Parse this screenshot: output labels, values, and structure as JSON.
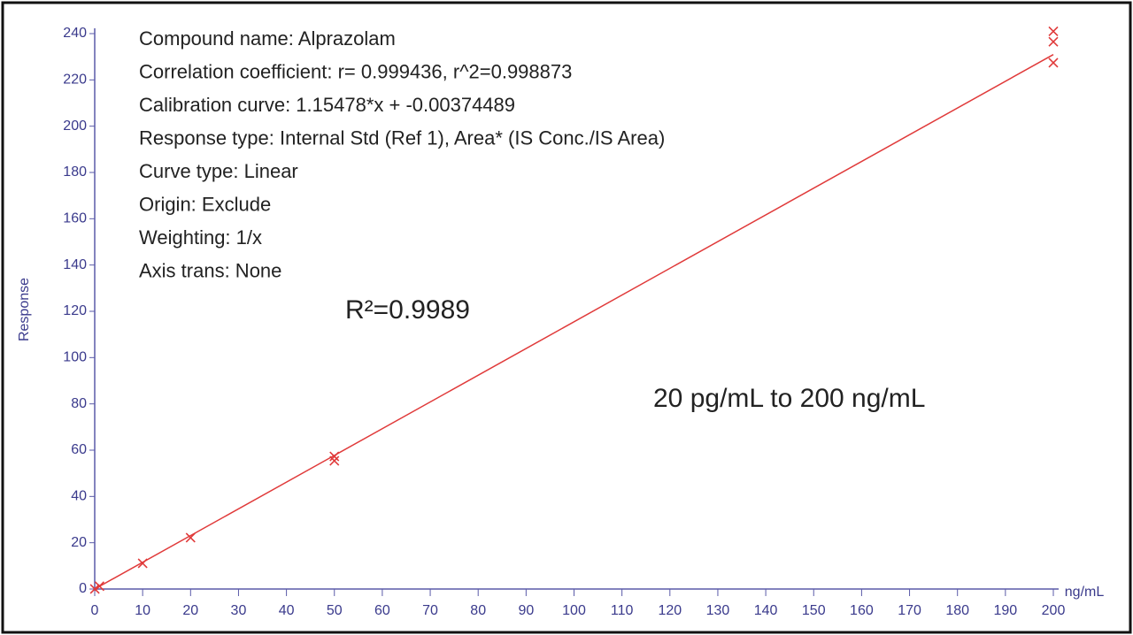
{
  "chart_data": {
    "type": "scatter",
    "xlabel": "ng/mL",
    "ylabel": "Response",
    "annotations": [
      "Compound name: Alprazolam",
      "Correlation coefficient: r= 0.999436, r^2=0.998873",
      "Calibration curve: 1.15478*x + -0.00374489",
      "Response type: Internal Std (Ref 1), Area* (IS Conc./IS Area)",
      "Curve type: Linear",
      "Origin: Exclude",
      "Weighting: 1/x",
      "Axis trans: None"
    ],
    "r2_label": "R²=0.9989",
    "range_label": "20 pg/mL to 200 ng/mL",
    "x": [
      0.02,
      1,
      10,
      20,
      50,
      50,
      200,
      200,
      200
    ],
    "values": [
      0.02,
      1.2,
      11.1,
      22.2,
      57.3,
      55.4,
      241,
      236.5,
      227.4
    ],
    "color": "#e03a3a",
    "fit_line": {
      "x": [
        0,
        200
      ],
      "values": [
        -0.0037,
        230.95
      ],
      "color": "#e03a3a"
    },
    "xlim": [
      0,
      200
    ],
    "ylim": [
      0,
      240
    ],
    "xticks": [
      0,
      10,
      20,
      30,
      40,
      50,
      60,
      70,
      80,
      90,
      100,
      110,
      120,
      130,
      140,
      150,
      160,
      170,
      180,
      190,
      200
    ],
    "yticks": [
      0,
      20,
      40,
      60,
      80,
      100,
      120,
      140,
      160,
      180,
      200,
      220,
      240
    ],
    "axis_color": "#5a5aa8"
  }
}
